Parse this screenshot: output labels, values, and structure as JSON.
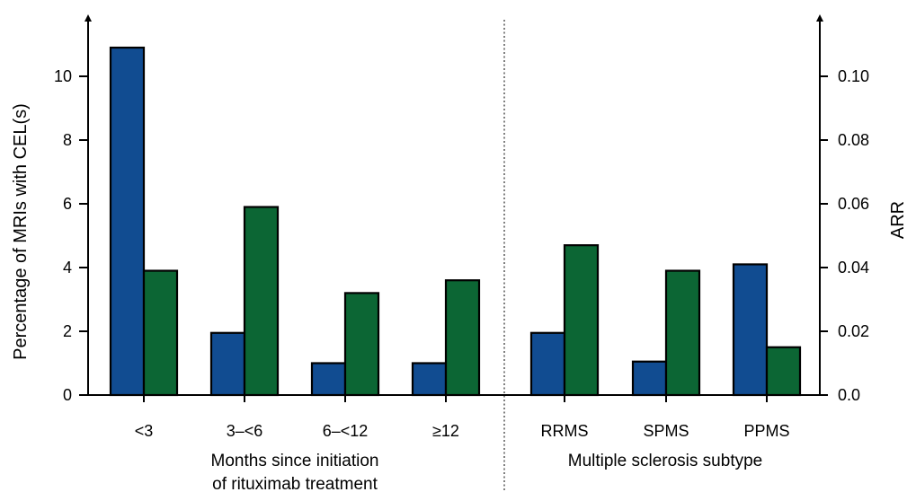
{
  "chart_data": {
    "type": "bar",
    "left_axis": {
      "label": "Percentage of MRIs with CEL(s)",
      "ylim": [
        0,
        12
      ],
      "ticks": [
        0,
        2,
        4,
        6,
        8,
        10
      ],
      "tick_labels": [
        "0",
        "2",
        "4",
        "6",
        "8",
        "10"
      ]
    },
    "right_axis": {
      "label": "ARR",
      "ylim": [
        0,
        0.12
      ],
      "ticks": [
        0,
        0.02,
        0.04,
        0.06,
        0.08,
        0.1
      ],
      "tick_labels": [
        "0.0",
        "0.02",
        "0.04",
        "0.06",
        "0.08",
        "0.10"
      ]
    },
    "groups": [
      {
        "label_lines": [
          "Months since initiation",
          "of rituximab treatment"
        ],
        "categories": [
          "<3",
          "3–<6",
          "6–<12",
          "≥12"
        ],
        "mri_cel_percent": [
          10.9,
          1.95,
          1.0,
          1.0
        ],
        "arr": [
          0.039,
          0.059,
          0.032,
          0.036
        ]
      },
      {
        "label_lines": [
          "Multiple sclerosis subtype"
        ],
        "categories": [
          "RRMS",
          "SPMS",
          "PPMS"
        ],
        "mri_cel_percent": [
          1.95,
          1.05,
          4.1
        ],
        "arr": [
          0.047,
          0.039,
          0.015
        ]
      }
    ],
    "series": [
      {
        "axis": "left",
        "field": "mri_cel_percent",
        "color": "#114c91"
      },
      {
        "axis": "right",
        "field": "arr",
        "color": "#0c6634"
      }
    ],
    "divider": "dotted vertical line between groups",
    "grid": false,
    "legend": "none"
  }
}
